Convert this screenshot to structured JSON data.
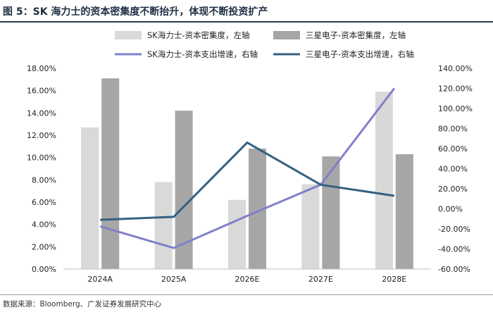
{
  "figure": {
    "title": "图 5：SK 海力士的资本密集度不断抬升，体现不断投资扩产",
    "source": "数据来源：Bloomberg、广发证券发展研究中心"
  },
  "chart_data": {
    "type": "bar",
    "title": "",
    "categories": [
      "2024A",
      "2025A",
      "2026E",
      "2027E",
      "2028E"
    ],
    "series": [
      {
        "name": "SK海力士-资本密集度，左轴",
        "type": "bar",
        "axis": "left",
        "color": "#d9d9d9",
        "values": [
          12.7,
          7.8,
          6.2,
          7.6,
          15.9
        ]
      },
      {
        "name": "三星电子-资本密集度，左轴",
        "type": "bar",
        "axis": "left",
        "color": "#a6a6a6",
        "values": [
          17.1,
          14.2,
          10.8,
          10.1,
          10.3
        ]
      },
      {
        "name": "SK海力士-资本支出增速，右轴",
        "type": "line",
        "axis": "right",
        "color": "#8080c8",
        "values": [
          -17.5,
          -39.0,
          -7.0,
          24.0,
          120.0
        ]
      },
      {
        "name": "三星电子-资本支出增速，右轴",
        "type": "line",
        "axis": "right",
        "color": "#336182",
        "values": [
          -11.0,
          -8.0,
          66.0,
          24.0,
          13.0
        ]
      }
    ],
    "left_axis": {
      "min": 0,
      "max": 18,
      "step": 2,
      "format": "percent2",
      "label": ""
    },
    "right_axis": {
      "min": -60,
      "max": 140,
      "step": 20,
      "format": "percent2",
      "label": ""
    },
    "legend_position": "top",
    "grid": false
  }
}
